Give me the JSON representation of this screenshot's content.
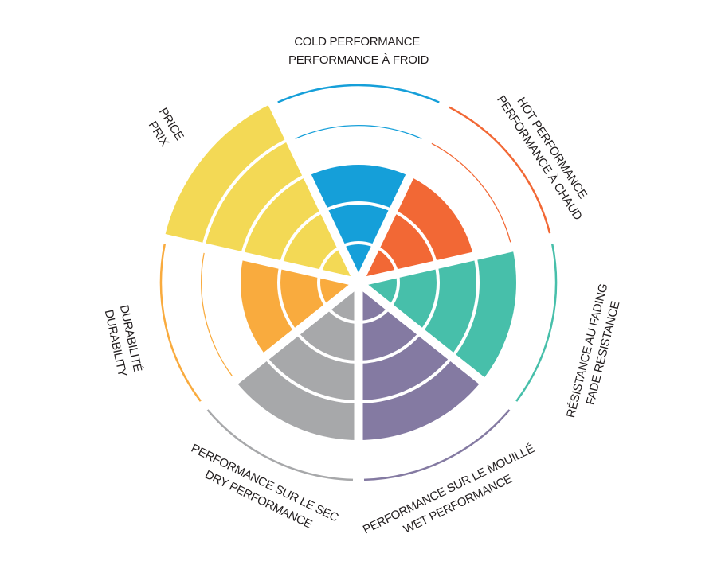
{
  "chart_data": {
    "type": "polar-area",
    "max": 5,
    "categories": [
      {
        "label_en": "COLD PERFORMANCE",
        "label_fr": "PERFORMANCE À FROID",
        "value": 3,
        "color": "#159fd9"
      },
      {
        "label_en": "HOT PERFORMANCE",
        "label_fr": "PERFORMANCE À CHAUD",
        "value": 3,
        "color": "#f26835"
      },
      {
        "label_en": "FADE RESISTANCE",
        "label_fr": "RÉSISTANCE AU FADING",
        "value": 4,
        "color": "#47bfaa"
      },
      {
        "label_en": "WET PERFORMANCE",
        "label_fr": "PERFORMANCE SUR LE MOUILLÉ",
        "value": 4,
        "color": "#847aa2"
      },
      {
        "label_en": "DRY PERFORMANCE",
        "label_fr": "PERFORMANCE SUR LE SEC",
        "value": 4,
        "color": "#a7a8aa"
      },
      {
        "label_en": "DURABILITY",
        "label_fr": "DURABILITÉ",
        "value": 3,
        "color": "#f9ab3e"
      },
      {
        "label_en": "PRICE",
        "label_fr": "PRIX",
        "value": 5,
        "color": "#f3d955"
      }
    ],
    "grid": true,
    "legend": "none"
  }
}
